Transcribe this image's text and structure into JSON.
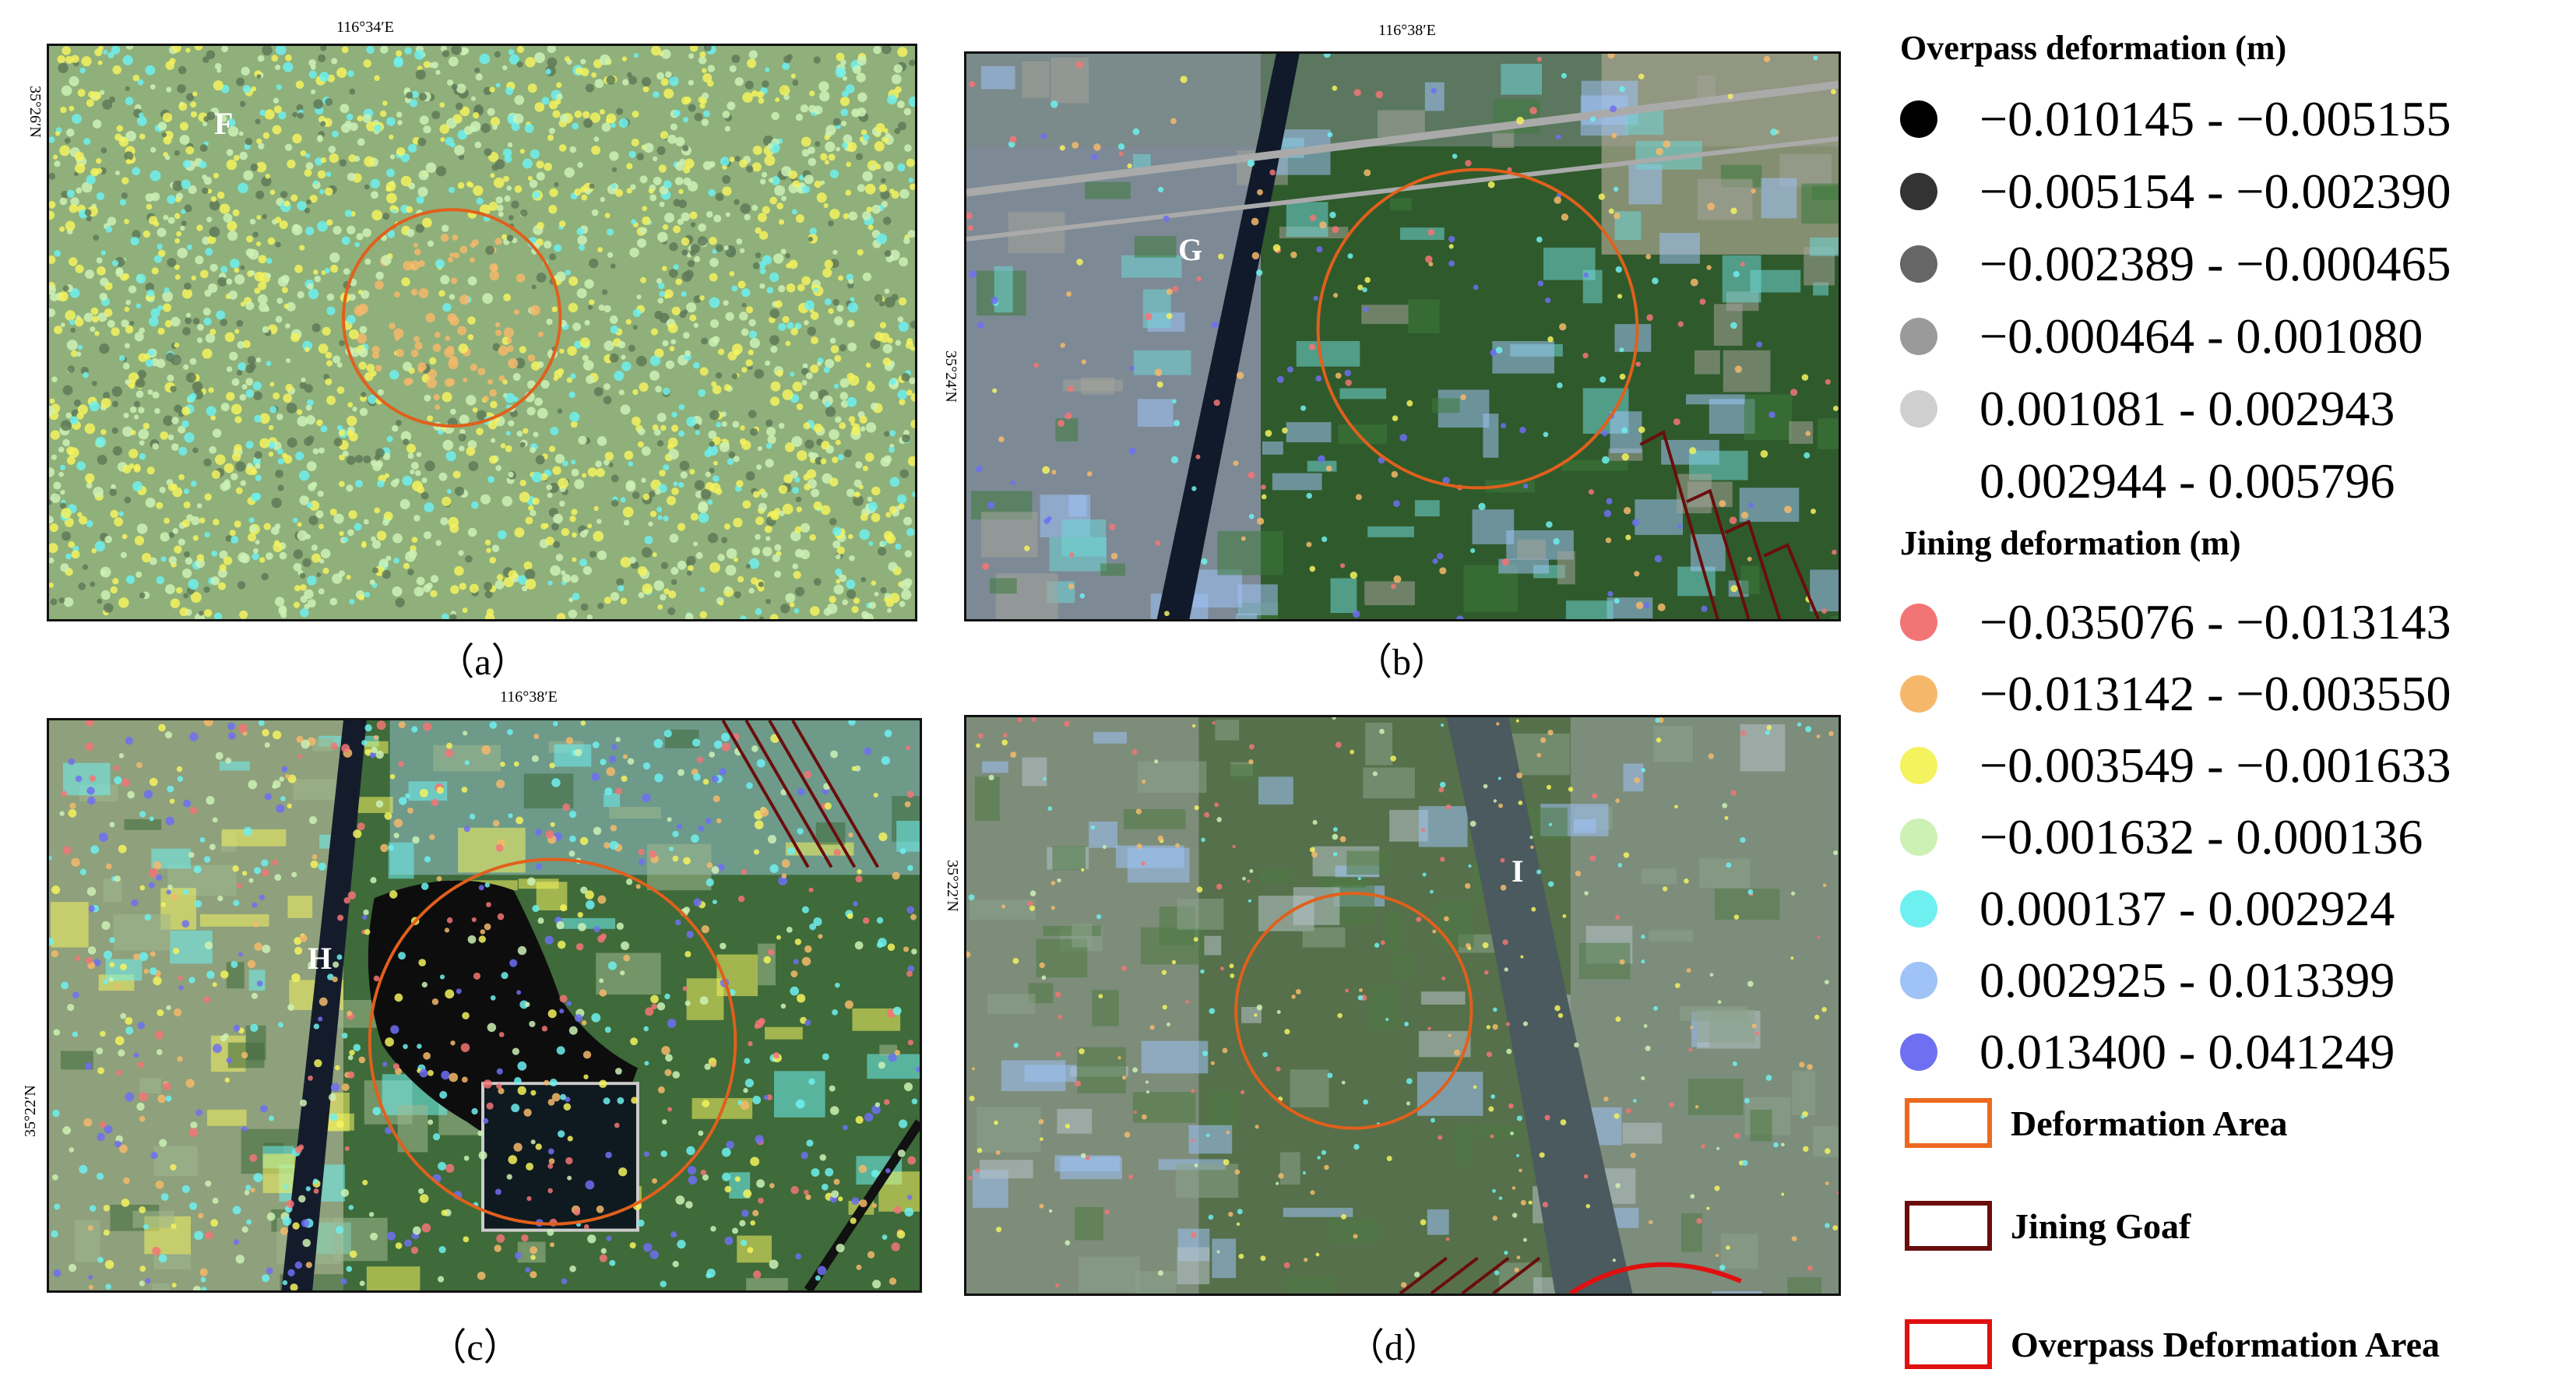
{
  "panels": {
    "a": {
      "caption": "（a）",
      "letter": "F",
      "top_coord": "116°34′E",
      "side_coord": "35°26′N"
    },
    "b": {
      "caption": "（b）",
      "letter": "G",
      "top_coord": "116°38′E",
      "side_coord": "35°24′N"
    },
    "c": {
      "caption": "（c）",
      "letter": "H",
      "top_coord": "116°38′E",
      "side_coord": "35°22′N"
    },
    "d": {
      "caption": "（d）",
      "letter": "I",
      "top_coord": "",
      "side_coord": "35°22′N"
    }
  },
  "legend": {
    "overpass_title": "Overpass deformation (m)",
    "overpass_classes": [
      {
        "range": "−0.010145 - −0.005155",
        "color": "#000000"
      },
      {
        "range": "−0.005154 - −0.002390",
        "color": "#333333"
      },
      {
        "range": "−0.002389 - −0.000465",
        "color": "#666666"
      },
      {
        "range": "−0.000464 - 0.001080",
        "color": "#9a9a9a"
      },
      {
        "range": "0.001081 - 0.002943",
        "color": "#cfcfcf"
      },
      {
        "range": "0.002944 - 0.005796",
        "color": "#ffffff"
      }
    ],
    "jining_title": "Jining deformation (m)",
    "jining_classes": [
      {
        "range": "−0.035076 - −0.013143",
        "color": "#f27575"
      },
      {
        "range": "−0.013142 - −0.003550",
        "color": "#f5b86b"
      },
      {
        "range": "−0.003549 - −0.001633",
        "color": "#f4f25e"
      },
      {
        "range": "−0.001632 - 0.000136",
        "color": "#cdf1b5"
      },
      {
        "range": "0.000137 - 0.002924",
        "color": "#6ff0f0"
      },
      {
        "range": "0.002925 - 0.013399",
        "color": "#9fc3f6"
      },
      {
        "range": "0.013400 - 0.041249",
        "color": "#6f6ff2"
      }
    ],
    "areas": [
      {
        "label": "Deformation Area",
        "color": "#ec6a1f"
      },
      {
        "label": "Jining Goaf",
        "color": "#6a0d0d"
      },
      {
        "label": "Overpass Deformation Area",
        "color": "#e01010"
      }
    ]
  }
}
